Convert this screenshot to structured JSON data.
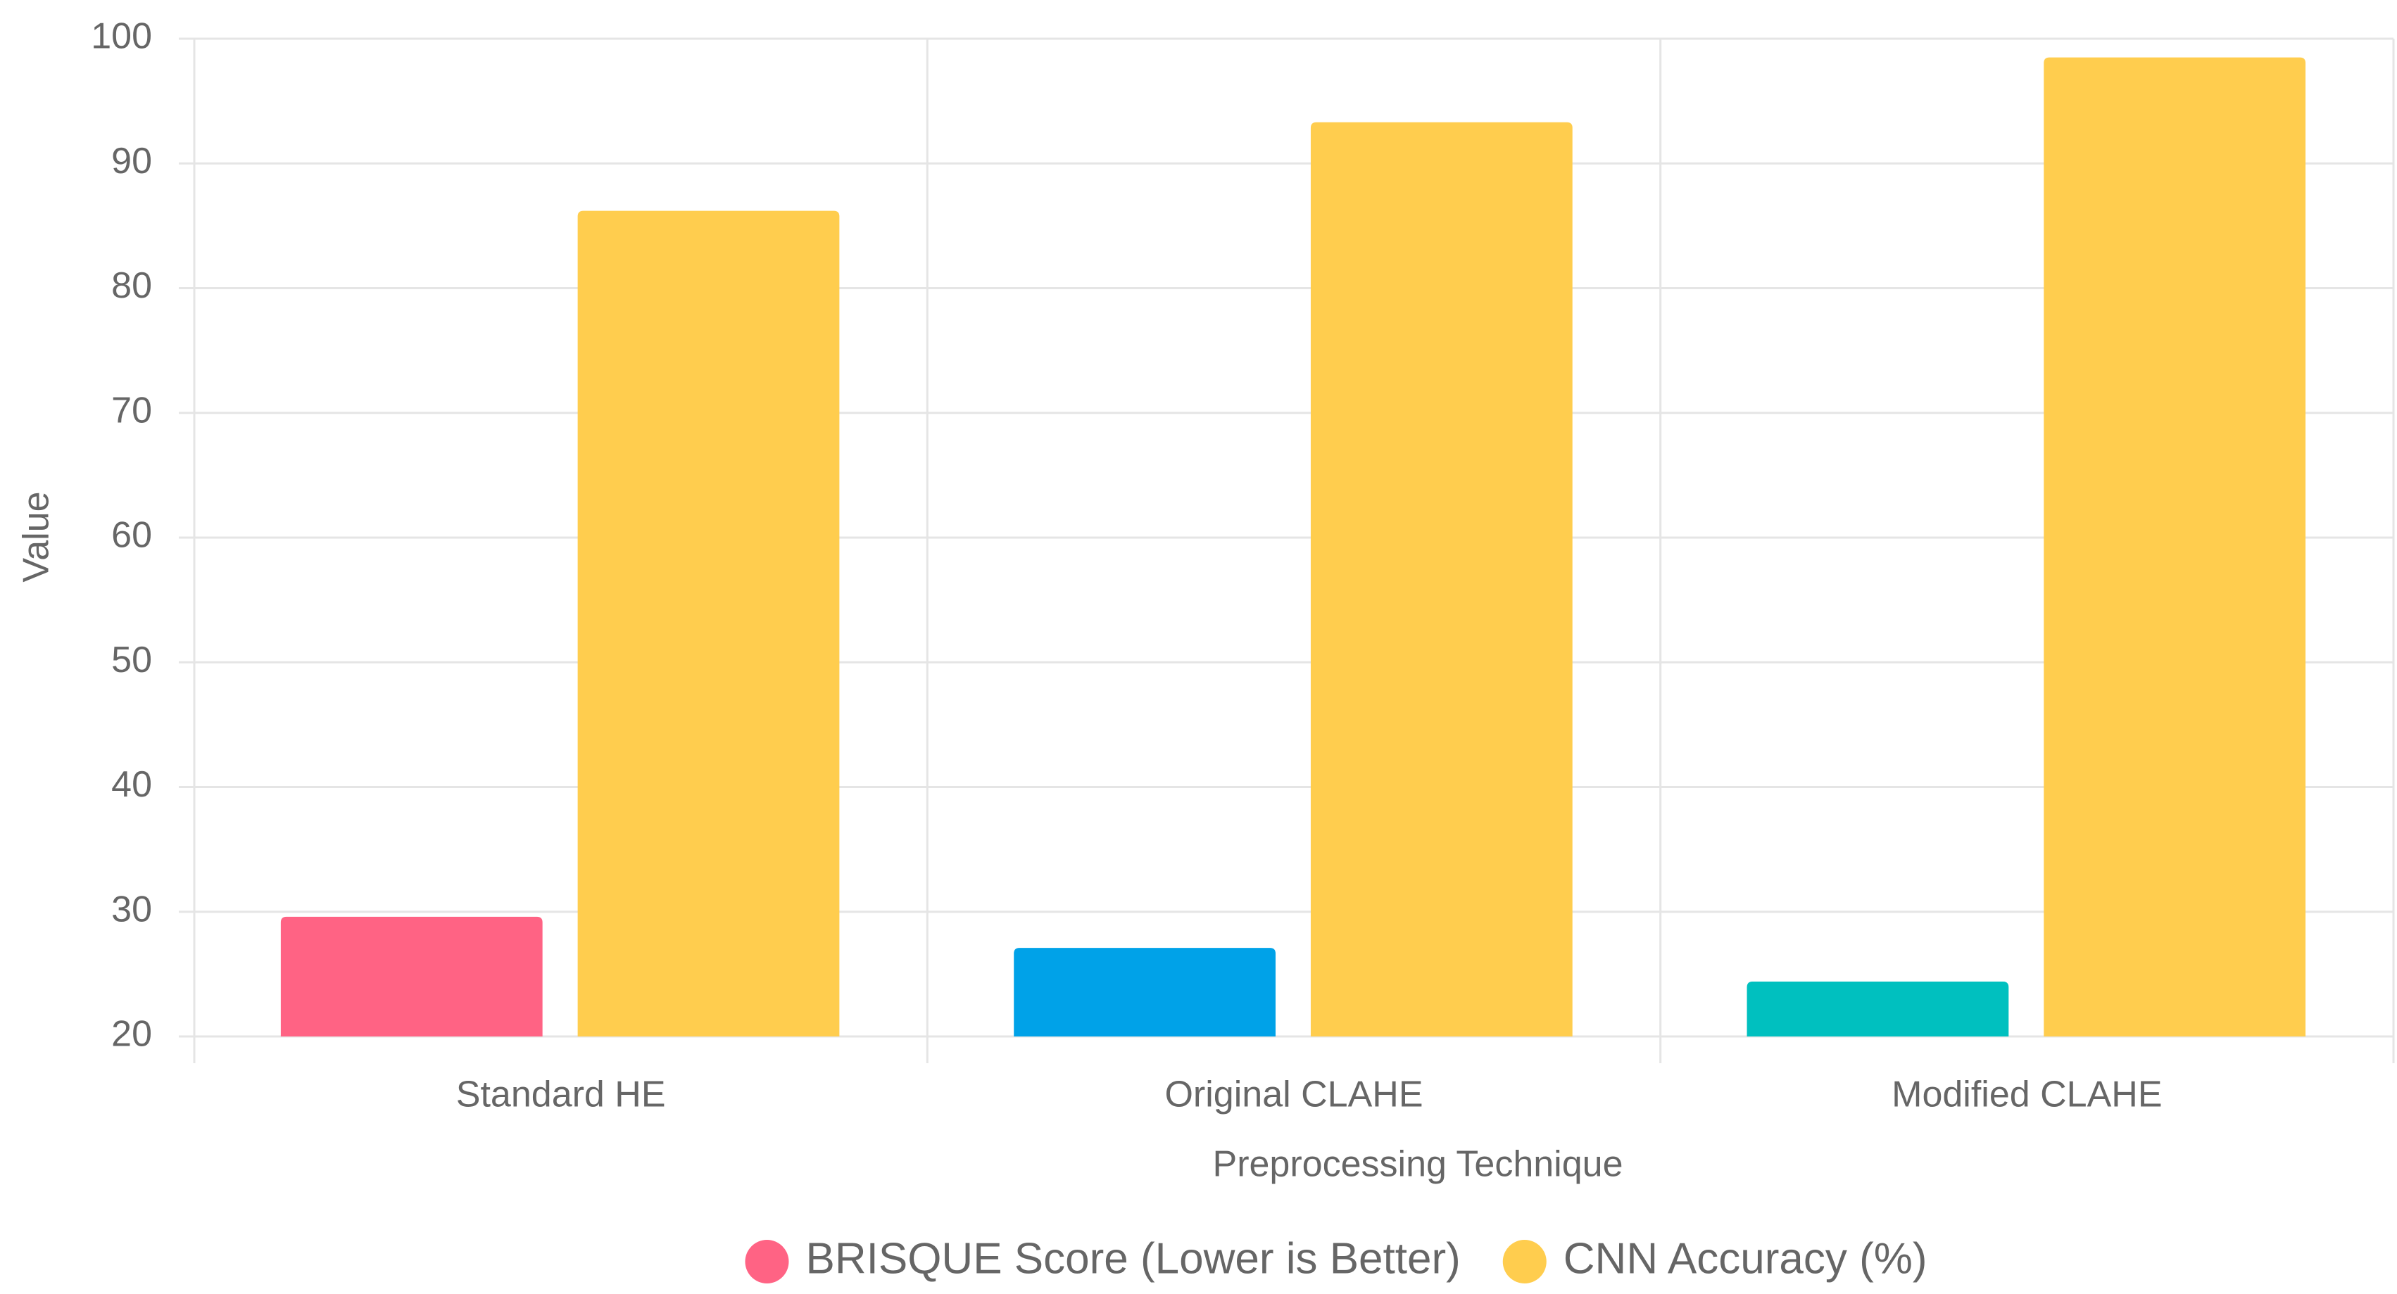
{
  "chart_data": {
    "type": "bar",
    "x_label": "Preprocessing Technique",
    "y_label": "Value",
    "categories": [
      "Standard HE",
      "Original CLAHE",
      "Modified CLAHE"
    ],
    "series": [
      {
        "name": "BRISQUE Score (Lower is Better)",
        "color": "#ff6384",
        "colors": [
          "#ff6384",
          "#00a2e8",
          "#00c0bf"
        ],
        "values": [
          29.6,
          27.1,
          24.4
        ]
      },
      {
        "name": "CNN Accuracy (%)",
        "color": "#ffcd4e",
        "values": [
          86.2,
          93.3,
          98.5
        ]
      }
    ],
    "ylim": [
      20,
      100
    ],
    "yticks": [
      20,
      30,
      40,
      50,
      60,
      70,
      80,
      90,
      100
    ],
    "grid": true,
    "legend": "bottom"
  }
}
